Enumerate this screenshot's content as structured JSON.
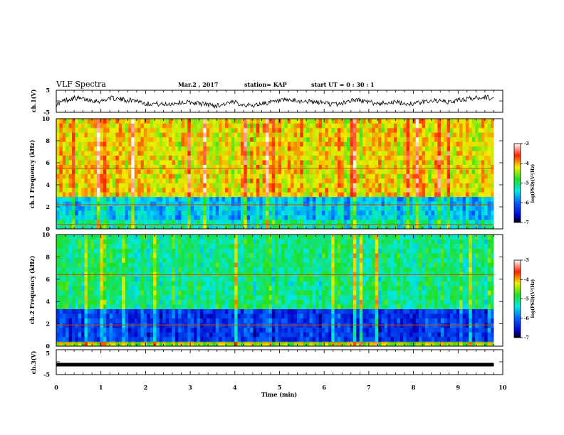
{
  "header": {
    "title": "VLF Spectra",
    "date": "Mar.2 , 2017",
    "station": "station= KAP",
    "start": "start  UT =   0 : 30 : 1"
  },
  "chart_data": [
    {
      "type": "line",
      "panel": "ch1-waveform",
      "ylabel": "ch.1(V)",
      "ylim": [
        -5,
        5
      ],
      "y_ticks": [
        "5",
        "-5"
      ],
      "xlim": [
        0,
        10
      ],
      "color": "#000000",
      "x": [
        0,
        0.2,
        0.4,
        0.6,
        0.8,
        1.0,
        1.2,
        1.4,
        1.6,
        1.8,
        2.0,
        2.2,
        2.4,
        2.6,
        2.8,
        3.0,
        3.2,
        3.4,
        3.6,
        3.8,
        4.0,
        4.2,
        4.4,
        4.6,
        4.8,
        5.0,
        5.2,
        5.4,
        5.6,
        5.8,
        6.0,
        6.2,
        6.4,
        6.6,
        6.8,
        7.0,
        7.2,
        7.4,
        7.6,
        7.8,
        8.0,
        8.2,
        8.4,
        8.6,
        8.8,
        9.0,
        9.2,
        9.4,
        9.6,
        9.8
      ],
      "y": [
        -1.5,
        0.5,
        1.5,
        1.0,
        0.5,
        0.0,
        1.5,
        1.0,
        0.5,
        0.5,
        -1.0,
        -1.0,
        -1.5,
        -1.0,
        -0.5,
        -0.5,
        -1.0,
        -1.5,
        -2.0,
        -1.0,
        -0.5,
        -1.5,
        -2.0,
        -1.0,
        -0.5,
        0.0,
        0.5,
        0.0,
        0.0,
        -0.5,
        -0.5,
        -1.5,
        -1.0,
        0.5,
        0.5,
        -0.5,
        -1.0,
        -0.5,
        -0.5,
        -1.0,
        -1.0,
        -0.5,
        0.5,
        0.0,
        -0.5,
        0.5,
        1.0,
        1.5,
        2.0,
        1.0
      ]
    },
    {
      "type": "heatmap",
      "panel": "ch1-spectrogram",
      "ylabel": "ch.1 Frequency (kHz)",
      "ylim": [
        0,
        10
      ],
      "y_ticks": [
        "0",
        "2",
        "4",
        "6",
        "8",
        "10"
      ],
      "xlim": [
        0,
        10
      ],
      "colorbar": {
        "label": "log(PSD)(V²/Hz)",
        "range": [
          -7,
          -3
        ],
        "ticks": [
          "-3",
          "-4",
          "-5",
          "-6",
          "-7"
        ]
      },
      "bands_khz": [
        {
          "from": 0,
          "to": 0.8,
          "level": -5.2
        },
        {
          "from": 0.8,
          "to": 3.0,
          "level": -5.6
        },
        {
          "from": 3.0,
          "to": 10,
          "level": -4.2
        }
      ],
      "lines_khz": [
        0.4,
        2.2,
        5.5
      ]
    },
    {
      "type": "heatmap",
      "panel": "ch2-spectrogram",
      "ylabel": "ch.2 Frequency (kHz)",
      "ylim": [
        0,
        10
      ],
      "y_ticks": [
        "0",
        "2",
        "4",
        "6",
        "8",
        "10"
      ],
      "xlim": [
        0,
        10
      ],
      "colorbar": {
        "label": "log(PSD)(V²/Hz)",
        "range": [
          -7,
          -3
        ],
        "ticks": [
          "-3",
          "-4",
          "-5",
          "-6",
          "-7"
        ]
      },
      "bands_khz": [
        {
          "from": 0,
          "to": 0.6,
          "level": -4.5
        },
        {
          "from": 0.6,
          "to": 3.5,
          "level": -6.3
        },
        {
          "from": 3.5,
          "to": 10,
          "level": -5.1
        }
      ],
      "lines_khz": [
        0.3,
        1.9,
        6.4
      ]
    },
    {
      "type": "line",
      "panel": "ch3-waveform",
      "ylabel": "ch.3(V)",
      "ylim": [
        -5,
        5
      ],
      "y_ticks": [
        "5",
        "-5"
      ],
      "xlim": [
        0,
        10
      ],
      "color": "#000000",
      "x": [
        0,
        9.8
      ],
      "y": [
        -1,
        -1
      ]
    }
  ],
  "x_axis": {
    "label": "Time (min)",
    "ticks": [
      "0",
      "1",
      "2",
      "3",
      "4",
      "5",
      "6",
      "7",
      "8",
      "9",
      "10"
    ]
  }
}
